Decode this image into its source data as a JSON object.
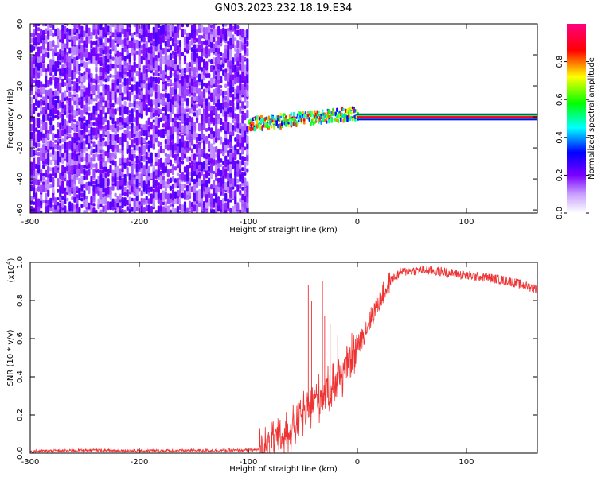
{
  "title": "GN03.2023.232.18.19.E34",
  "chart_data": [
    {
      "type": "heatmap",
      "title": "GN03.2023.232.18.19.E34",
      "xlabel": "Height of straight line (km)",
      "ylabel": "Frequency (Hz)",
      "xlim": [
        -300,
        165
      ],
      "ylim": [
        -62,
        60
      ],
      "x_ticks": [
        -300,
        -200,
        -100,
        0,
        100
      ],
      "x_tick_labels": [
        "-300",
        "-200",
        "-100",
        "0",
        "100"
      ],
      "y_ticks": [
        -60,
        -40,
        -20,
        0,
        20,
        40,
        60
      ],
      "y_tick_labels": [
        "-60",
        "-40",
        "-20",
        "0",
        "20",
        "40",
        "60"
      ],
      "grid": false,
      "colormap": "rainbow",
      "colorbar": {
        "label": "Normalized spectral amplitude",
        "range": [
          0,
          1
        ],
        "ticks": [
          0.0,
          0.2,
          0.4,
          0.6,
          0.8
        ],
        "tick_labels": [
          "0.0",
          "0.2",
          "0.4",
          "0.6",
          "0.8"
        ],
        "colors": [
          "#ffffff",
          "#7a00ff",
          "#0000ff",
          "#00ffff",
          "#00ff00",
          "#ffff00",
          "#ff0000",
          "#ff0080"
        ]
      },
      "regions": [
        {
          "description": "broadband noise",
          "x_range": [
            -300,
            -100
          ],
          "y_range": [
            -62,
            60
          ],
          "amplitude": [
            0.1,
            0.25
          ]
        },
        {
          "description": "signal cluster",
          "x_range": [
            -100,
            0
          ],
          "y_center": [
            -5,
            2
          ],
          "amplitude": [
            0.3,
            0.9
          ]
        },
        {
          "description": "narrow band at 0 Hz",
          "x_range": [
            0,
            165
          ],
          "y_center": 0,
          "amplitude": 0.9
        }
      ]
    },
    {
      "type": "line",
      "xlabel": "Height of straight line (km)",
      "ylabel": "SNR (10 * v/v)",
      "y_multiplier_label": "(x10",
      "y_multiplier_exp": "4",
      "xlim": [
        -300,
        165
      ],
      "ylim": [
        0,
        1.0
      ],
      "x_ticks": [
        -300,
        -200,
        -100,
        0,
        100
      ],
      "x_tick_labels": [
        "-300",
        "-200",
        "-100",
        "0",
        "100"
      ],
      "y_ticks": [
        0.0,
        0.2,
        0.4,
        0.6,
        0.8,
        1.0
      ],
      "y_tick_labels": [
        "0.0",
        "0.2",
        "0.4",
        "0.6",
        "0.8",
        "1.0"
      ],
      "grid": false,
      "color": "#ee3333",
      "trend": {
        "x": [
          -300,
          -250,
          -200,
          -150,
          -100,
          -90,
          -80,
          -70,
          -60,
          -50,
          -40,
          -30,
          -20,
          -10,
          0,
          10,
          20,
          30,
          40,
          60,
          80,
          100,
          120,
          140,
          165
        ],
        "y": [
          0.01,
          0.015,
          0.012,
          0.014,
          0.015,
          0.02,
          0.04,
          0.08,
          0.13,
          0.2,
          0.27,
          0.32,
          0.38,
          0.45,
          0.55,
          0.68,
          0.8,
          0.9,
          0.95,
          0.96,
          0.95,
          0.93,
          0.92,
          0.9,
          0.86
        ]
      },
      "spikes": [
        {
          "x": -45,
          "y": 0.88
        },
        {
          "x": -42,
          "y": 0.8
        },
        {
          "x": -32,
          "y": 0.9
        },
        {
          "x": -30,
          "y": 0.72
        },
        {
          "x": -25,
          "y": 0.68
        },
        {
          "x": -18,
          "y": 0.62
        }
      ]
    }
  ]
}
